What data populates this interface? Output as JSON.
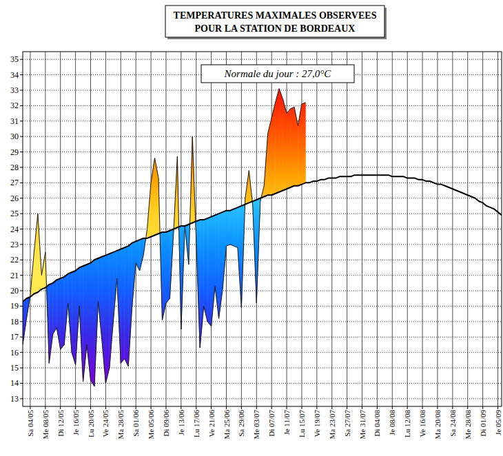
{
  "chart_data": {
    "type": "area",
    "title": "TEMPERATURES MAXIMALES OBSERVEES",
    "subtitle": "POUR LA STATION DE BORDEAUX",
    "annotations": [
      "Normale du jour : 27,0°C"
    ],
    "categories": [
      null,
      null,
      "Sa 04/05",
      null,
      null,
      null,
      "Me 08/05",
      null,
      null,
      null,
      "Di 12/05",
      null,
      null,
      null,
      "Je 16/05",
      null,
      null,
      null,
      "Lu 20/05",
      null,
      null,
      null,
      "Ve 24/05",
      null,
      null,
      null,
      "Ma 28/05",
      null,
      null,
      null,
      "Sa 01/06",
      null,
      null,
      null,
      "Me 05/06",
      null,
      null,
      null,
      "Di 09/06",
      null,
      null,
      null,
      "Je 13/06",
      null,
      null,
      null,
      "Lu 17/06",
      null,
      null,
      null,
      "Ve 21/06",
      null,
      null,
      null,
      "Ma 25/06",
      null,
      null,
      null,
      "Sa 29/06",
      null,
      null,
      null,
      "Me 03/07",
      null,
      null,
      null,
      "Di 07/07",
      null,
      null,
      null,
      "Je 11/07",
      null,
      null,
      null,
      "Lu 15/07",
      null,
      null,
      null,
      "Ve 19/07",
      null,
      null,
      null,
      "Ma 23/07",
      null,
      null,
      null,
      "Sa 27/07",
      null,
      null,
      null,
      "Me 31/07",
      null,
      null,
      null,
      "Di 04/08",
      null,
      null,
      null,
      "Je 08/08",
      null,
      null,
      null,
      "Lu 12/08",
      null,
      null,
      null,
      "Ve 16/08",
      null,
      null,
      null,
      "Ma 20/08",
      null,
      null,
      null,
      "Sa 24/08",
      null,
      null,
      null,
      "Me 28/08",
      null,
      null,
      null,
      "Di 01/09",
      null,
      null,
      null,
      "Je 05/09",
      null
    ],
    "series": [
      {
        "color": "#1a1a1a",
        "values": [
          16.5,
          18.2,
          19.7,
          22.5,
          25.0,
          21.0,
          22.5,
          15.3,
          17.2,
          17.6,
          16.2,
          16.5,
          19.2,
          16.0,
          15.2,
          19.0,
          14.1,
          16.5,
          14.2,
          13.8,
          19.3,
          16.8,
          14.0,
          15.0,
          18.0,
          20.8,
          15.3,
          15.6,
          15.1,
          19.0,
          21.8,
          21.3,
          22.3,
          24.0,
          27.0,
          28.6,
          27.3,
          18.1,
          19.2,
          19.5,
          23.8,
          28.7,
          17.5,
          24.2,
          21.7,
          30.0,
          23.3,
          16.3,
          19.0,
          18.0,
          17.7,
          20.3,
          18.2,
          20.1,
          22.9,
          23.0,
          22.9,
          22.8,
          18.9,
          26.0,
          27.8,
          25.5,
          19.2,
          25.8,
          26.8,
          30.2,
          31.2,
          32.2,
          33.1,
          32.4,
          31.5,
          31.8,
          31.9,
          30.7,
          32.1,
          32.2,
          null,
          null,
          null,
          null,
          null,
          null,
          null,
          null,
          null,
          null,
          null,
          null,
          null,
          null,
          null,
          null,
          null,
          null,
          null,
          null,
          null,
          null,
          null,
          null,
          null,
          null,
          null,
          null,
          null,
          null,
          null,
          null,
          null,
          null,
          null,
          null,
          null,
          null,
          null,
          null,
          null,
          null,
          null,
          null,
          null,
          null,
          null,
          null,
          null,
          null,
          null,
          null
        ]
      },
      {
        "type": "line",
        "color": "#000000",
        "values": [
          19.3,
          19.5,
          19.6,
          19.8,
          19.9,
          20.1,
          20.2,
          20.4,
          20.5,
          20.7,
          20.8,
          20.9,
          21.1,
          21.2,
          21.3,
          21.5,
          21.6,
          21.7,
          21.8,
          22.0,
          22.1,
          22.2,
          22.3,
          22.4,
          22.5,
          22.6,
          22.7,
          22.8,
          22.9,
          23.1,
          23.2,
          23.3,
          23.4,
          23.4,
          23.5,
          23.6,
          23.7,
          23.8,
          23.8,
          23.9,
          24.0,
          24.1,
          24.2,
          24.2,
          24.3,
          24.4,
          24.5,
          24.6,
          24.6,
          24.7,
          24.8,
          24.9,
          25.0,
          25.1,
          25.2,
          25.2,
          25.3,
          25.4,
          25.5,
          25.6,
          25.7,
          25.8,
          25.9,
          26.0,
          26.1,
          26.2,
          26.2,
          26.3,
          26.4,
          26.5,
          26.6,
          26.7,
          26.8,
          26.8,
          26.9,
          27.0,
          27.0,
          27.1,
          27.1,
          27.2,
          27.2,
          27.3,
          27.3,
          27.3,
          27.4,
          27.4,
          27.4,
          27.4,
          27.5,
          27.5,
          27.5,
          27.5,
          27.5,
          27.5,
          27.5,
          27.5,
          27.5,
          27.5,
          27.4,
          27.4,
          27.4,
          27.4,
          27.3,
          27.3,
          27.3,
          27.2,
          27.2,
          27.1,
          27.1,
          27.0,
          26.9,
          26.9,
          26.8,
          26.7,
          26.6,
          26.5,
          26.4,
          26.3,
          26.2,
          26.1,
          26.0,
          25.8,
          25.7,
          25.5,
          25.4,
          25.3,
          25.1,
          24.9
        ]
      }
    ],
    "ylim": [
      12.5,
      35.5
    ],
    "yticks": [
      13,
      14,
      15,
      16,
      17,
      18,
      19,
      20,
      21,
      22,
      23,
      24,
      25,
      26,
      27,
      28,
      29,
      30,
      31,
      32,
      33,
      34,
      35
    ],
    "grid": true
  }
}
